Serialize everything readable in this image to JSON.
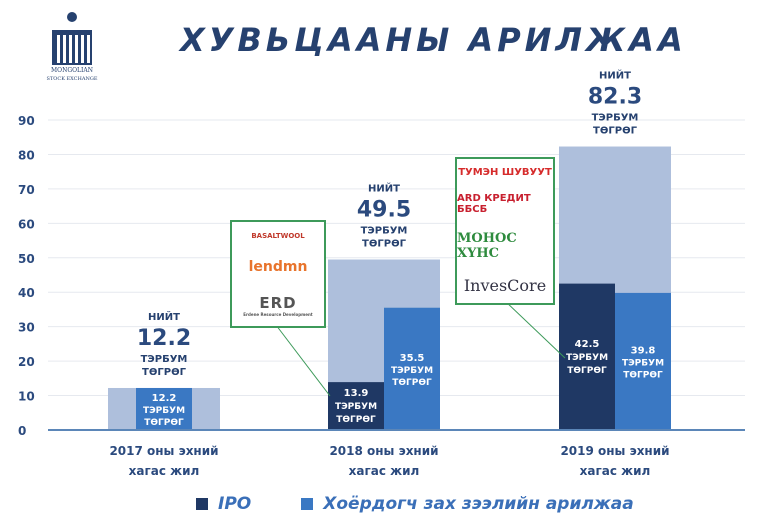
{
  "header": {
    "title": "ХУВЬЦААНЫ АРИЛЖАА",
    "logo_text": [
      "MONGOLIAN",
      "STOCK EXCHANGE"
    ]
  },
  "chart_data": {
    "type": "bar",
    "title": "ХУВЬЦААНЫ АРИЛЖАА",
    "categories": [
      "2017 оны эхний хагас жил",
      "2018 оны эхний хагас жил",
      "2019 оны эхний хагас жил"
    ],
    "category_lines": [
      [
        "2017 оны эхний",
        "хагас жил"
      ],
      [
        "2018 оны эхний",
        "хагас жил"
      ],
      [
        "2019 оны эхний",
        "хагас жил"
      ]
    ],
    "ylim": [
      0,
      90
    ],
    "yticks": [
      0,
      10,
      20,
      30,
      40,
      50,
      60,
      70,
      80,
      90
    ],
    "grid": true,
    "legend_position": "bottom",
    "total": {
      "values": [
        12.2,
        49.5,
        82.3
      ],
      "label_prefix": "НИЙТ",
      "unit_lines": [
        "ТЭРБУМ",
        "ТӨГРӨГ"
      ],
      "color": "#aebfdc"
    },
    "series": [
      {
        "name": "IPO",
        "values": [
          null,
          13.9,
          42.5
        ],
        "color": "#1f3864"
      },
      {
        "name": "Хоёрдогч зах зээлийн арилжаа",
        "values": [
          12.2,
          35.5,
          39.8
        ],
        "color": "#3a78c3"
      }
    ],
    "value_labels": {
      "unit_lines": [
        "ТЭРБУМ",
        "ТӨГРӨГ"
      ]
    }
  },
  "callouts": [
    {
      "logos": [
        "BASALTWOOL",
        "lendmn",
        "ERD",
        "Erdene Resource Development"
      ]
    },
    {
      "logos": [
        "ТУМЭН ШУВУУТ",
        "ARD КРЕДИТ ББСБ",
        "МОНОС ХҮНС",
        "InvesCore"
      ]
    }
  ],
  "legend": [
    {
      "label": "IPO",
      "color": "#1f3864"
    },
    {
      "label": "Хоёрдогч зах зээлийн арилжаа",
      "color": "#3a78c3"
    }
  ]
}
